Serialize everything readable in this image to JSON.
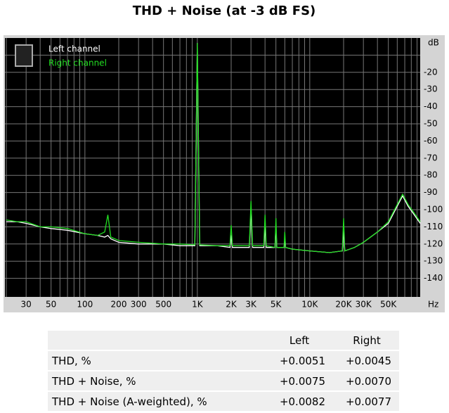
{
  "chart_data": {
    "type": "line",
    "title": "THD + Noise (at -3 dB FS)",
    "xlabel": "Hz",
    "ylabel": "dB",
    "xscale": "log",
    "grid": true,
    "legend": "upper left",
    "xlim": [
      20,
      96000
    ],
    "ylim": [
      -150,
      0
    ],
    "xticks": [
      30,
      50,
      100,
      200,
      300,
      500,
      {
        "value": 1000,
        "label": "1K"
      },
      {
        "value": 2000,
        "label": "2K"
      },
      {
        "value": 3000,
        "label": "3K"
      },
      {
        "value": 5000,
        "label": "5K"
      },
      {
        "value": 10000,
        "label": "10K"
      },
      {
        "value": 20000,
        "label": "20K"
      },
      {
        "value": 30000,
        "label": "30K"
      },
      {
        "value": 50000,
        "label": "50K"
      }
    ],
    "xminor": [
      20,
      40,
      60,
      70,
      80,
      90,
      400,
      600,
      700,
      800,
      900,
      4000,
      6000,
      7000,
      8000,
      9000,
      40000,
      60000,
      70000,
      80000,
      90000
    ],
    "yticks": [
      -20,
      -30,
      -40,
      -50,
      -60,
      -70,
      -80,
      -90,
      -100,
      -110,
      -120,
      -130,
      -140
    ],
    "yminor": [
      -10
    ],
    "x": [
      20,
      25,
      30,
      40,
      50,
      70,
      100,
      130,
      150,
      160,
      170,
      200,
      300,
      500,
      700,
      950,
      1000,
      1050,
      1500,
      1950,
      2000,
      2050,
      2900,
      3000,
      3100,
      3900,
      4000,
      4100,
      4900,
      5000,
      5100,
      5900,
      6000,
      6100,
      7000,
      10000,
      15000,
      19500,
      20000,
      20500,
      25000,
      30000,
      40000,
      50000,
      60000,
      67000,
      75000,
      85000,
      96000
    ],
    "series": [
      {
        "name": "Left channel",
        "color": "#ffffff",
        "values": [
          -107,
          -107,
          -108,
          -110,
          -111,
          -112,
          -114,
          -115,
          -116,
          -115,
          -117,
          -119,
          -120,
          -120,
          -121,
          -121,
          -3,
          -121,
          -121,
          -122,
          -115,
          -122,
          -122,
          -100,
          -122,
          -122,
          -110,
          -122,
          -122,
          -110,
          -122,
          -122,
          -118,
          -122,
          -123,
          -124,
          -125,
          -124,
          -112,
          -124,
          -122,
          -119,
          -113,
          -108,
          -98,
          -92,
          -98,
          -103,
          -108
        ]
      },
      {
        "name": "Right channel",
        "color": "#22dd22",
        "values": [
          -106,
          -107,
          -107,
          -110,
          -110,
          -111,
          -114,
          -115,
          -113,
          -103,
          -116,
          -118,
          -119,
          -120,
          -120,
          -120.5,
          -3,
          -120.5,
          -121,
          -121,
          -109,
          -121,
          -121,
          -95,
          -121,
          -121,
          -103,
          -121,
          -122,
          -105,
          -122,
          -122,
          -113,
          -122,
          -123,
          -124,
          -125,
          -124,
          -105,
          -124,
          -122,
          -119,
          -113,
          -107,
          -97,
          -91,
          -97,
          -102,
          -107
        ]
      }
    ]
  },
  "table": {
    "columns": [
      "Left",
      "Right"
    ],
    "rows": [
      [
        "THD, %",
        "+0.0051",
        "+0.0045"
      ],
      [
        "THD + Noise, %",
        "+0.0075",
        "+0.0070"
      ],
      [
        "THD + Noise (A-weighted), %",
        "+0.0082",
        "+0.0077"
      ]
    ]
  }
}
